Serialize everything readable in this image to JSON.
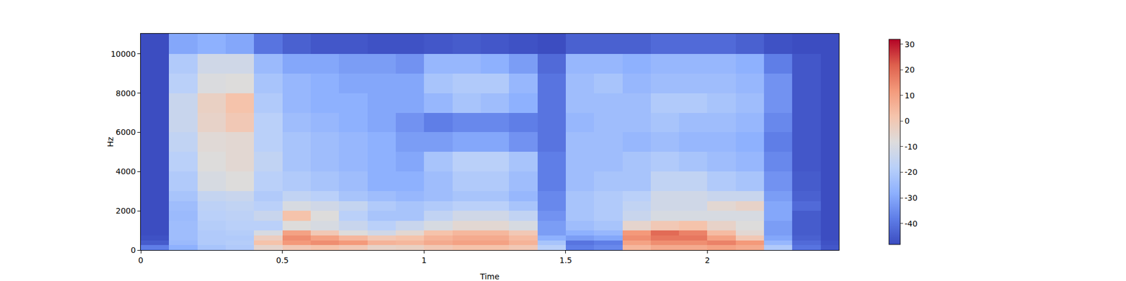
{
  "chart_data": {
    "type": "heatmap",
    "x_label": "Time",
    "y_label": "Hz",
    "xlim": [
      0,
      2.464
    ],
    "ylim": [
      0,
      11025
    ],
    "xticks": [
      0,
      0.5,
      1,
      1.5,
      2
    ],
    "yticks": [
      0,
      2000,
      4000,
      6000,
      8000,
      10000
    ],
    "grid": false,
    "time_bins": [
      0,
      0.1,
      0.2,
      0.3,
      0.4,
      0.5,
      0.6,
      0.7,
      0.8,
      0.9,
      1.0,
      1.1,
      1.2,
      1.3,
      1.4,
      1.5,
      1.6,
      1.7,
      1.8,
      1.9,
      2.0,
      2.1,
      2.2,
      2.3,
      2.4,
      2.464
    ],
    "freq_bins": [
      0,
      250,
      500,
      750,
      1000,
      1500,
      2000,
      2500,
      3000,
      4000,
      5000,
      6000,
      7000,
      8000,
      9000,
      10000,
      11025
    ],
    "cells": [
      [
        -38,
        -45,
        -47,
        -48,
        -48,
        -48,
        -48,
        -48,
        -48,
        -48,
        -48,
        -48,
        -48,
        -48,
        -48,
        -48
      ],
      [
        -28,
        -25,
        -24,
        -24,
        -24,
        -25,
        -24,
        -22,
        -20,
        -18,
        -16,
        -14,
        -14,
        -18,
        -20,
        -30
      ],
      [
        -22,
        -20,
        -20,
        -20,
        -19,
        -18,
        -17,
        -15,
        -10,
        -8,
        -7,
        -4,
        -3,
        -9,
        -12,
        -28
      ],
      [
        -20,
        -19,
        -20,
        -19,
        -18,
        -17,
        -16,
        -14,
        -8,
        -6,
        -6,
        0,
        2,
        -8,
        -12,
        -30
      ],
      [
        -5,
        2,
        -2,
        -10,
        -18,
        -14,
        -18,
        -20,
        -18,
        -16,
        -18,
        -18,
        -20,
        -22,
        -25,
        -40
      ],
      [
        0,
        12,
        14,
        10,
        -8,
        2,
        -10,
        -16,
        -20,
        -22,
        -22,
        -24,
        -26,
        -26,
        -30,
        -44
      ],
      [
        2,
        14,
        10,
        0,
        -10,
        -8,
        -12,
        -18,
        -22,
        -24,
        -24,
        -26,
        -28,
        -28,
        -30,
        -46
      ],
      [
        0,
        12,
        5,
        -8,
        -14,
        -18,
        -15,
        -22,
        -24,
        -26,
        -26,
        -28,
        -28,
        -30,
        -32,
        -46
      ],
      [
        -4,
        6,
        0,
        -12,
        -18,
        -22,
        -20,
        -24,
        -28,
        -28,
        -28,
        -30,
        -30,
        -30,
        -32,
        -47
      ],
      [
        -3,
        5,
        2,
        -6,
        -14,
        -22,
        -22,
        -26,
        -28,
        -30,
        -32,
        -34,
        -30,
        -30,
        -34,
        -47
      ],
      [
        0,
        8,
        6,
        2,
        -10,
        -16,
        -20,
        -24,
        -24,
        -22,
        -32,
        -38,
        -26,
        -22,
        -26,
        -46
      ],
      [
        2,
        10,
        8,
        5,
        -6,
        -12,
        -18,
        -22,
        -20,
        -18,
        -30,
        -36,
        -22,
        -20,
        -26,
        -45
      ],
      [
        2,
        10,
        8,
        5,
        -6,
        -12,
        -18,
        -22,
        -20,
        -18,
        -30,
        -36,
        -24,
        -20,
        -28,
        -46
      ],
      [
        0,
        6,
        4,
        0,
        -10,
        -16,
        -22,
        -26,
        -24,
        -22,
        -34,
        -38,
        -28,
        -26,
        -32,
        -47
      ],
      [
        -18,
        -22,
        -28,
        -32,
        -32,
        -34,
        -36,
        -36,
        -38,
        -38,
        -40,
        -40,
        -40,
        -40,
        -42,
        -48
      ],
      [
        -38,
        -40,
        -32,
        -28,
        -24,
        -22,
        -22,
        -22,
        -24,
        -24,
        -24,
        -26,
        -24,
        -24,
        -26,
        -44
      ],
      [
        -36,
        -38,
        -30,
        -26,
        -22,
        -20,
        -20,
        -20,
        -22,
        -24,
        -24,
        -24,
        -24,
        -22,
        -26,
        -44
      ],
      [
        5,
        10,
        14,
        12,
        -5,
        -14,
        -16,
        -18,
        -22,
        -22,
        -26,
        -24,
        -24,
        -26,
        -28,
        -44
      ],
      [
        8,
        14,
        18,
        20,
        0,
        -10,
        -12,
        -12,
        -16,
        -20,
        -24,
        -22,
        -20,
        -24,
        -26,
        -42
      ],
      [
        8,
        14,
        18,
        16,
        2,
        -10,
        -12,
        -12,
        -16,
        -22,
        -26,
        -24,
        -20,
        -24,
        -26,
        -42
      ],
      [
        10,
        16,
        10,
        4,
        -4,
        -10,
        -6,
        -14,
        -20,
        -24,
        -26,
        -24,
        -22,
        -24,
        -26,
        -42
      ],
      [
        8,
        12,
        0,
        -6,
        -8,
        -10,
        -4,
        -14,
        -22,
        -26,
        -28,
        -26,
        -24,
        -26,
        -28,
        -44
      ],
      [
        -20,
        -26,
        -30,
        -32,
        -32,
        -30,
        -30,
        -32,
        -34,
        -36,
        -38,
        -36,
        -34,
        -34,
        -38,
        -47
      ],
      [
        -40,
        -42,
        -44,
        -45,
        -45,
        -45,
        -42,
        -44,
        -45,
        -46,
        -46,
        -46,
        -46,
        -46,
        -46,
        -48
      ],
      [
        -46,
        -47,
        -48,
        -48,
        -48,
        -48,
        -48,
        -48,
        -48,
        -48,
        -48,
        -48,
        -48,
        -48,
        -48,
        -48
      ]
    ],
    "colorbar_range": [
      -48.2,
      31.9
    ],
    "colorbar_ticks": [
      -40,
      -30,
      -20,
      -10,
      0,
      10,
      20,
      30
    ]
  }
}
